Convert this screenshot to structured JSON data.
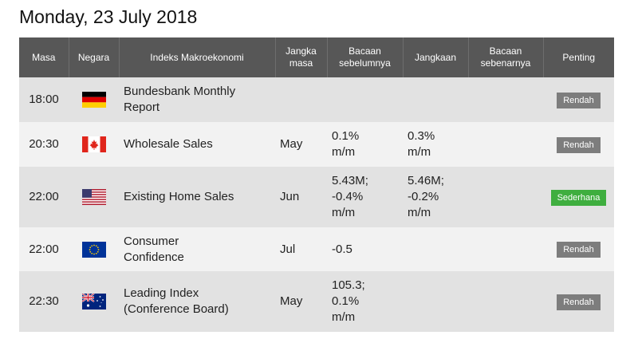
{
  "title": "Monday, 23 July 2018",
  "columns": {
    "time": "Masa",
    "country": "Negara",
    "index": "Indeks Makroekonomi",
    "period_l1": "Jangka",
    "period_l2": "masa",
    "previous_l1": "Bacaan",
    "previous_l2": "sebelumnya",
    "forecast": "Jangkaan",
    "actual_l1": "Bacaan",
    "actual_l2": "sebenarnya",
    "importance": "Penting"
  },
  "rows": [
    {
      "time": "18:00",
      "country_flag": "germany-flag-icon",
      "index": "Bundesbank Monthly\nReport",
      "period": "",
      "previous": "",
      "forecast": "",
      "actual": "",
      "importance": "Rendah",
      "importance_level": "low"
    },
    {
      "time": "20:30",
      "country_flag": "canada-flag-icon",
      "index": "Wholesale Sales",
      "period": "May",
      "previous": "0.1%\nm/m",
      "forecast": "0.3%\nm/m",
      "actual": "",
      "importance": "Rendah",
      "importance_level": "low"
    },
    {
      "time": "22:00",
      "country_flag": "usa-flag-icon",
      "index": "Existing Home Sales",
      "period": "Jun",
      "previous": "5.43M;\n-0.4%\nm/m",
      "forecast": "5.46M;\n-0.2%\nm/m",
      "actual": "",
      "importance": "Sederhana",
      "importance_level": "medium"
    },
    {
      "time": "22:00",
      "country_flag": "eu-flag-icon",
      "index": "Consumer\nConfidence",
      "period": "Jul",
      "previous": "-0.5",
      "forecast": "",
      "actual": "",
      "importance": "Rendah",
      "importance_level": "low"
    },
    {
      "time": "22:30",
      "country_flag": "australia-flag-icon",
      "index": "Leading Index\n(Conference Board)",
      "period": "May",
      "previous": "105.3;\n0.1%\nm/m",
      "forecast": "",
      "actual": "",
      "importance": "Rendah",
      "importance_level": "low"
    }
  ],
  "colors": {
    "header_bg": "#575757",
    "row_odd": "#e2e2e2",
    "row_even": "#f2f2f2",
    "badge_low": "#7d7d7d",
    "badge_medium": "#3fae3f"
  }
}
